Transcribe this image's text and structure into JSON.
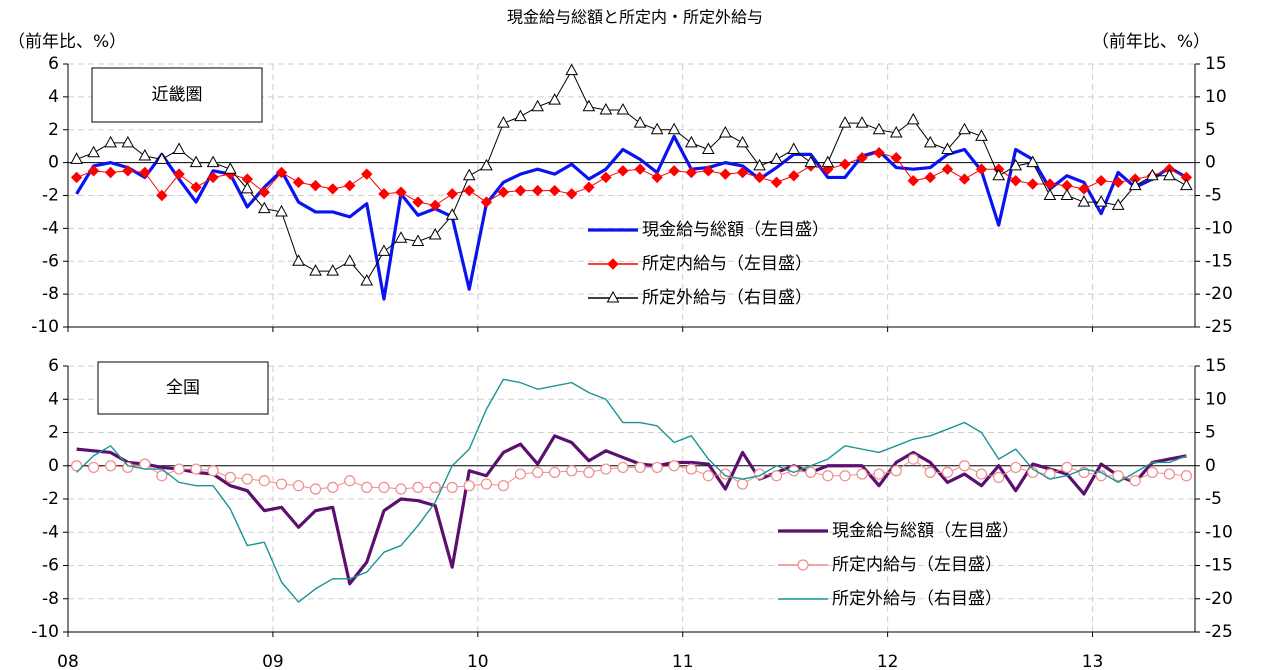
{
  "title": "現金給与総額と所定内・所定外給与",
  "y_label": "（前年比、%）",
  "y2_label": "（前年比、%）",
  "chart_data": [
    {
      "type": "line",
      "annotation": "近畿圏",
      "x": [
        2008.042,
        2008.125,
        2008.208,
        2008.292,
        2008.375,
        2008.458,
        2008.542,
        2008.625,
        2008.708,
        2008.792,
        2008.875,
        2008.958,
        2009.042,
        2009.125,
        2009.208,
        2009.292,
        2009.375,
        2009.458,
        2009.542,
        2009.625,
        2009.708,
        2009.792,
        2009.875,
        2009.958,
        2010.042,
        2010.125,
        2010.208,
        2010.292,
        2010.375,
        2010.458,
        2010.542,
        2010.625,
        2010.708,
        2010.792,
        2010.875,
        2010.958,
        2011.042,
        2011.125,
        2011.208,
        2011.292,
        2011.375,
        2011.458,
        2011.542,
        2011.625,
        2011.708,
        2011.792,
        2011.875,
        2011.958,
        2012.042,
        2012.125,
        2012.208,
        2012.292,
        2012.375,
        2012.458,
        2012.542,
        2012.625,
        2012.708,
        2012.792,
        2012.875,
        2012.958,
        2013.042,
        2013.125,
        2013.208,
        2013.292,
        2013.375,
        2013.458
      ],
      "xlim": [
        2008,
        2013.5
      ],
      "xticks": [
        2008,
        2009,
        2010,
        2011,
        2012,
        2013
      ],
      "ylim": [
        -10,
        6
      ],
      "yticks": [
        6,
        4,
        2,
        0,
        -2,
        -4,
        -6,
        -8,
        -10
      ],
      "y2lim": [
        -25,
        15
      ],
      "y2ticks": [
        15,
        10,
        5,
        0,
        -5,
        -10,
        -15,
        -20,
        -25
      ],
      "grid": true,
      "series": [
        {
          "name": "現金給与総額（左目盛）",
          "color": "#0a14f0",
          "marker": "none",
          "axis": "y",
          "values": [
            -1.9,
            -0.2,
            0,
            -0.3,
            -0.9,
            0.5,
            -1.0,
            -2.4,
            -0.5,
            -0.7,
            -2.7,
            -1.5,
            -0.5,
            -2.4,
            -3.0,
            -3.0,
            -3.3,
            -2.5,
            -8.3,
            -1.9,
            -3.2,
            -2.8,
            -3.3,
            -7.7,
            -2.5,
            -1.2,
            -0.7,
            -0.4,
            -0.7,
            -0.1,
            -1.0,
            -0.4,
            0.8,
            0.2,
            -0.6,
            1.6,
            -0.4,
            -0.3,
            0,
            -0.2,
            -1.0,
            -0.3,
            0.5,
            0.5,
            -0.9,
            -0.9,
            0.4,
            0.7,
            -0.3,
            -0.4,
            -0.3,
            0.5,
            0.8,
            -0.5,
            -3.8,
            0.8,
            0.2,
            -1.6,
            -0.8,
            -1.2,
            -3.1,
            -0.6,
            -1.5,
            -1.0,
            -0.3,
            -0.9
          ]
        },
        {
          "name": "所定内給与（左目盛）",
          "color": "#ff0000",
          "marker": "diamond",
          "axis": "y",
          "values": [
            -0.9,
            -0.5,
            -0.6,
            -0.5,
            -0.6,
            -2.0,
            -0.7,
            -1.5,
            -0.9,
            -0.7,
            -1.0,
            -1.8,
            -0.6,
            -1.2,
            -1.4,
            -1.6,
            -1.4,
            -0.7,
            -1.9,
            -1.8,
            -2.4,
            -2.6,
            -1.9,
            -1.7,
            -2.4,
            -1.8,
            -1.7,
            -1.7,
            -1.7,
            -1.9,
            -1.5,
            -0.9,
            -0.5,
            -0.4,
            -0.9,
            -0.5,
            -0.6,
            -0.5,
            -0.7,
            -0.6,
            -0.9,
            -1.2,
            -0.8,
            -0.2,
            -0.4,
            -0.1,
            0.3,
            0.6,
            0.3,
            -1.1,
            -0.9,
            -0.4,
            -1.0,
            -0.4,
            -0.4,
            -1.1,
            -1.3,
            -1.3,
            -1.4,
            -1.6,
            -1.1,
            -1.2,
            -1.0,
            -0.8,
            -0.4,
            -0.9
          ]
        },
        {
          "name": "所定外給与（右目盛）",
          "color": "#000000",
          "marker": "triangle",
          "axis": "y2",
          "values": [
            0.5,
            1.5,
            3,
            3,
            1,
            0.5,
            2,
            0,
            0,
            -1,
            -4,
            -7,
            -7.5,
            -15,
            -16.5,
            -16.5,
            -15,
            -18,
            -13.5,
            -11.5,
            -12,
            -11,
            -8,
            -2,
            -0.5,
            6,
            7,
            8.5,
            9.5,
            14,
            8.5,
            8,
            8,
            6,
            5,
            5,
            3,
            2,
            4.5,
            3,
            -0.5,
            0.5,
            2,
            0,
            0,
            6,
            6,
            5,
            4.5,
            6.5,
            3,
            2,
            5,
            4,
            -2,
            -0.5,
            0,
            -5,
            -5,
            -6,
            -6,
            -6.5,
            -3.5,
            -2,
            -2,
            -3.5
          ]
        }
      ]
    },
    {
      "type": "line",
      "annotation": "全国",
      "x": [
        2008.042,
        2008.125,
        2008.208,
        2008.292,
        2008.375,
        2008.458,
        2008.542,
        2008.625,
        2008.708,
        2008.792,
        2008.875,
        2008.958,
        2009.042,
        2009.125,
        2009.208,
        2009.292,
        2009.375,
        2009.458,
        2009.542,
        2009.625,
        2009.708,
        2009.792,
        2009.875,
        2009.958,
        2010.042,
        2010.125,
        2010.208,
        2010.292,
        2010.375,
        2010.458,
        2010.542,
        2010.625,
        2010.708,
        2010.792,
        2010.875,
        2010.958,
        2011.042,
        2011.125,
        2011.208,
        2011.292,
        2011.375,
        2011.458,
        2011.542,
        2011.625,
        2011.708,
        2011.792,
        2011.875,
        2011.958,
        2012.042,
        2012.125,
        2012.208,
        2012.292,
        2012.375,
        2012.458,
        2012.542,
        2012.625,
        2012.708,
        2012.792,
        2012.875,
        2012.958,
        2013.042,
        2013.125,
        2013.208,
        2013.292,
        2013.375,
        2013.458
      ],
      "xlim": [
        2008,
        2013.5
      ],
      "xticks": [
        {
          "value": 2008,
          "label": "08"
        },
        {
          "value": 2009,
          "label": "09"
        },
        {
          "value": 2010,
          "label": "10"
        },
        {
          "value": 2011,
          "label": "11"
        },
        {
          "value": 2012,
          "label": "12"
        },
        {
          "value": 2013,
          "label": "13"
        }
      ],
      "ylim": [
        -10,
        6
      ],
      "yticks": [
        6,
        4,
        2,
        0,
        -2,
        -4,
        -6,
        -8,
        -10
      ],
      "y2lim": [
        -25,
        15
      ],
      "y2ticks": [
        15,
        10,
        5,
        0,
        -5,
        -10,
        -15,
        -20,
        -25
      ],
      "grid": false,
      "series": [
        {
          "name": "現金給与総額（左目盛）",
          "color": "#5c0f6e",
          "marker": "none",
          "axis": "y",
          "values": [
            1.0,
            0.9,
            0.8,
            0.2,
            0.1,
            -0.1,
            -0.2,
            -0.4,
            -0.5,
            -1.2,
            -1.5,
            -2.7,
            -2.5,
            -3.7,
            -2.7,
            -2.5,
            -7.1,
            -5.8,
            -2.7,
            -2.0,
            -2.1,
            -2.4,
            -6.1,
            -0.3,
            -0.6,
            0.8,
            1.3,
            0.1,
            1.8,
            1.4,
            0.3,
            0.9,
            0.5,
            0.1,
            0,
            0.2,
            0.2,
            0.1,
            -1.4,
            0.8,
            -0.8,
            -0.4,
            0,
            -0.4,
            0,
            0,
            0,
            -1.2,
            0.2,
            0.8,
            0.2,
            -1.0,
            -0.5,
            -1.2,
            0,
            -1.5,
            0.1,
            -0.2,
            -0.5,
            -1.7,
            0.1,
            -0.6,
            -1.0,
            0.2,
            0.4,
            0.6
          ]
        },
        {
          "name": "所定内給与（左目盛）",
          "color": "#f08c8c",
          "marker": "circle",
          "axis": "y",
          "values": [
            0,
            -0.1,
            0,
            -0.1,
            0.1,
            -0.6,
            -0.2,
            -0.2,
            -0.3,
            -0.7,
            -0.8,
            -0.9,
            -1.1,
            -1.2,
            -1.4,
            -1.3,
            -0.9,
            -1.3,
            -1.3,
            -1.4,
            -1.3,
            -1.3,
            -1.3,
            -1.2,
            -1.1,
            -1.2,
            -0.5,
            -0.4,
            -0.4,
            -0.3,
            -0.4,
            -0.2,
            -0.1,
            -0.1,
            -0.1,
            0,
            -0.2,
            -0.6,
            -0.5,
            -1.1,
            -0.5,
            -0.6,
            -0.3,
            -0.4,
            -0.6,
            -0.6,
            -0.5,
            -0.5,
            -0.3,
            0.4,
            -0.4,
            -0.4,
            0,
            -0.5,
            -0.7,
            -0.1,
            -0.4,
            -0.5,
            -0.1,
            -0.4,
            -0.6,
            -0.6,
            -0.9,
            -0.4,
            -0.5,
            -0.6
          ]
        },
        {
          "name": "所定外給与（右目盛）",
          "color": "#1a9494",
          "marker": "none",
          "axis": "y2",
          "values": [
            -1,
            1.5,
            3,
            0,
            -0.5,
            -0.5,
            -2.5,
            -3,
            -3,
            -6.5,
            -12,
            -11.5,
            -17.5,
            -20.5,
            -18.5,
            -17,
            -17,
            -16,
            -13,
            -12,
            -9,
            -5.5,
            0,
            2.5,
            8.5,
            13,
            12.5,
            11.5,
            12,
            12.5,
            11,
            10,
            6.5,
            6.5,
            6,
            3.5,
            4.5,
            1,
            -1.5,
            -2,
            -1.5,
            0,
            -1,
            0,
            1,
            3,
            2.5,
            2,
            3,
            4,
            4.5,
            5.5,
            6.5,
            5,
            1,
            2.5,
            -0.5,
            -2,
            -1.5,
            -0.5,
            -1,
            -2.5,
            -1,
            0.5,
            0.5,
            1.5
          ]
        }
      ]
    }
  ]
}
